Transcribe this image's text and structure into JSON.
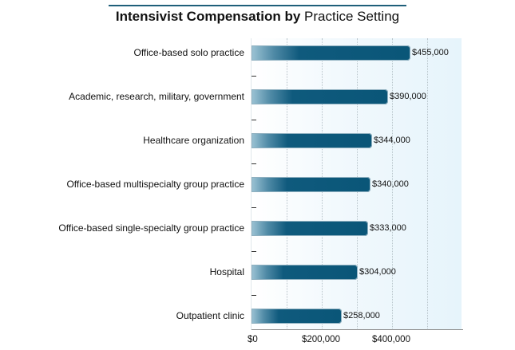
{
  "chart_data": {
    "type": "bar",
    "orientation": "horizontal",
    "title": "Intensivist Compensation by Practice Setting",
    "title_bold_part": "Intensivist Compensation by",
    "title_regular_part": "Practice Setting",
    "categories": [
      "Office-based solo practice",
      "Academic, research, military, government",
      "Healthcare organization",
      "Office-based multispecialty group practice",
      "Office-based single-specialty group practice",
      "Hospital",
      "Outpatient clinic"
    ],
    "values": [
      455000,
      390000,
      344000,
      340000,
      333000,
      304000,
      258000
    ],
    "value_labels": [
      "$455,000",
      "$390,000",
      "$344,000",
      "$340,000",
      "$333,000",
      "$304,000",
      "$258,000"
    ],
    "xlabel": "",
    "ylabel": "",
    "xlim": [
      0,
      600000
    ],
    "x_ticks": [
      0,
      200000,
      400000
    ],
    "x_tick_labels": [
      "$0",
      "$200,000",
      "$400,000"
    ],
    "grid": "vertical dotted every 100000",
    "legend": "none",
    "colors": {
      "bar": "#0a5678",
      "bar_fade": "#9cc3d4",
      "title_rule": "#1f5f7a"
    }
  }
}
